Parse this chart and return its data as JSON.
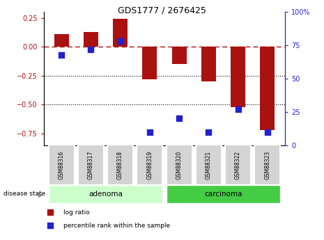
{
  "title": "GDS1777 / 2676425",
  "samples": [
    "GSM88316",
    "GSM88317",
    "GSM88318",
    "GSM88319",
    "GSM88320",
    "GSM88321",
    "GSM88322",
    "GSM88323"
  ],
  "log_ratio": [
    0.11,
    0.13,
    0.24,
    -0.28,
    -0.15,
    -0.3,
    -0.52,
    -0.72
  ],
  "percentile_rank": [
    68,
    72,
    78,
    10,
    20,
    10,
    27,
    10
  ],
  "adenoma_indices": [
    0,
    1,
    2,
    3
  ],
  "carcinoma_indices": [
    4,
    5,
    6,
    7
  ],
  "bar_color": "#aa1111",
  "dot_color": "#2222cc",
  "adenoma_color": "#ccffcc",
  "carcinoma_color": "#44cc44",
  "ylim_left": [
    -0.85,
    0.3
  ],
  "ylim_right": [
    0,
    100
  ],
  "yticks_left": [
    0.25,
    0,
    -0.25,
    -0.5,
    -0.75
  ],
  "yticks_right": [
    100,
    75,
    50,
    25,
    0
  ],
  "dotted_lines": [
    -0.25,
    -0.5
  ],
  "bar_width": 0.5,
  "dot_size": 35
}
